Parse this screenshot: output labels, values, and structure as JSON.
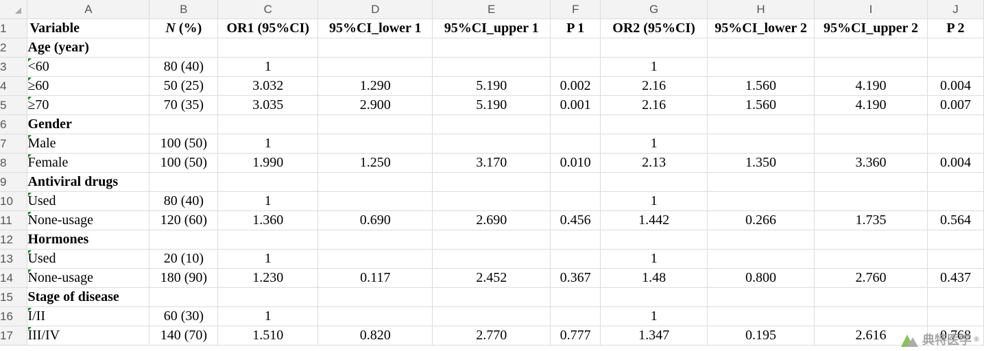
{
  "columns": [
    "A",
    "B",
    "C",
    "D",
    "E",
    "F",
    "G",
    "H",
    "I",
    "J"
  ],
  "header": {
    "variable": "Variable",
    "n_italic": "N",
    "n_rest": " (%)",
    "or1": "OR1 (95%CI)",
    "lower1": "95%CI_lower 1",
    "upper1": "95%CI_upper 1",
    "p1": "P 1",
    "or2": "OR2 (95%CI)",
    "lower2": "95%CI_lower 2",
    "upper2": "95%CI_upper 2",
    "p2": "P 2"
  },
  "rows": [
    {
      "num": "2",
      "label": "Age (year)"
    },
    {
      "num": "3",
      "label": "<60",
      "n": "80 (40)",
      "or1": "1",
      "l1": "",
      "u1": "",
      "p1": "",
      "or2": "1",
      "l2": "",
      "u2": "",
      "p2": ""
    },
    {
      "num": "4",
      "label": "≥60",
      "n": "50 (25)",
      "or1": "3.032",
      "l1": "1.290",
      "u1": "5.190",
      "p1": "0.002",
      "or2": "2.16",
      "l2": "1.560",
      "u2": "4.190",
      "p2": "0.004"
    },
    {
      "num": "5",
      "label": "≥70",
      "n": "70 (35)",
      "or1": "3.035",
      "l1": "2.900",
      "u1": "5.190",
      "p1": "0.001",
      "or2": "2.16",
      "l2": "1.560",
      "u2": "4.190",
      "p2": "0.007"
    },
    {
      "num": "6",
      "label": "Gender"
    },
    {
      "num": "7",
      "label": "Male",
      "n": "100 (50)",
      "or1": "1",
      "l1": "",
      "u1": "",
      "p1": "",
      "or2": "1",
      "l2": "",
      "u2": "",
      "p2": ""
    },
    {
      "num": "8",
      "label": "Female",
      "n": "100 (50)",
      "or1": "1.990",
      "l1": "1.250",
      "u1": "3.170",
      "p1": "0.010",
      "or2": "2.13",
      "l2": "1.350",
      "u2": "3.360",
      "p2": "0.004"
    },
    {
      "num": "9",
      "label": "Antiviral drugs"
    },
    {
      "num": "10",
      "label": "Used",
      "n": "80 (40)",
      "or1": "1",
      "l1": "",
      "u1": "",
      "p1": "",
      "or2": "1",
      "l2": "",
      "u2": "",
      "p2": ""
    },
    {
      "num": "11",
      "label": "None-usage",
      "n": "120 (60)",
      "or1": "1.360",
      "l1": "0.690",
      "u1": "2.690",
      "p1": "0.456",
      "or2": "1.442",
      "l2": "0.266",
      "u2": "1.735",
      "p2": "0.564"
    },
    {
      "num": "12",
      "label": "Hormones"
    },
    {
      "num": "13",
      "label": "Used",
      "n": "20 (10)",
      "or1": "1",
      "l1": "",
      "u1": "",
      "p1": "",
      "or2": "1",
      "l2": "",
      "u2": "",
      "p2": ""
    },
    {
      "num": "14",
      "label": "None-usage",
      "n": "180 (90)",
      "or1": "1.230",
      "l1": "0.117",
      "u1": "2.452",
      "p1": "0.367",
      "or2": "1.48",
      "l2": "0.800",
      "u2": "2.760",
      "p2": "0.437"
    },
    {
      "num": "15",
      "label": "Stage of disease"
    },
    {
      "num": "16",
      "label": "I/II",
      "n": "60 (30)",
      "or1": "1",
      "l1": "",
      "u1": "",
      "p1": "",
      "or2": "1",
      "l2": "",
      "u2": "",
      "p2": ""
    },
    {
      "num": "17",
      "label": "III/IV",
      "n": "140 (70)",
      "or1": "1.510",
      "l1": "0.820",
      "u1": "2.770",
      "p1": "0.777",
      "or2": "1.347",
      "l2": "0.195",
      "u2": "2.616",
      "p2": "0.768"
    }
  ],
  "watermark": {
    "text": "典特医学",
    "reg": "®"
  },
  "colors": {
    "header_bg": "#f3f3f3",
    "gridline": "#dcdcdc",
    "flag_green": "#1d7a3a"
  }
}
